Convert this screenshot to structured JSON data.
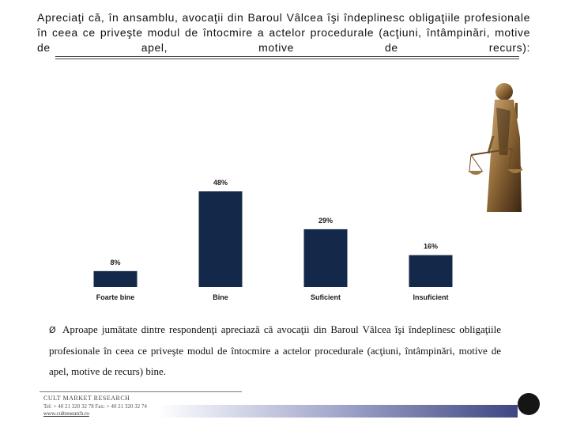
{
  "question": "Apreciaţi că, în ansamblu, avocaţii din Baroul Vâlcea îşi îndeplinesc obligaţiile profesionale în ceea ce priveşte modul de întocmire a actelor procedurale (acţiuni, întâmpinări, motive de apel, motive de recurs):",
  "chart_data": {
    "type": "bar",
    "categories": [
      "Foarte bine",
      "Bine",
      "Suficient",
      "Insuficient"
    ],
    "values": [
      8,
      48,
      29,
      16
    ],
    "data_labels": [
      "8%",
      "48%",
      "29%",
      "16%"
    ],
    "ylim": [
      0,
      55
    ],
    "grid": false,
    "legend": "none",
    "bar_color": "#14284a"
  },
  "conclusion": {
    "bullet": "Ø",
    "text": "Aproape jumătate dintre respondenţi apreciază că avocaţii din Baroul Vâlcea îşi îndeplinesc obligaţiile profesionale în ceea ce priveşte modul de întocmire a actelor procedurale (acţiuni, întâmpinări, motive de apel, motive de recurs) bine."
  },
  "footer": {
    "company": "CULT MARKET RESEARCH",
    "contact": "Tel: + 40 21 320 32 78 Fax: + 40 21 320 32 74",
    "website": "www.cultresearch.ro",
    "band_color": "#3e4682"
  },
  "images": {
    "justice": "justice-statue-image",
    "logo": "cult-research-logo"
  }
}
